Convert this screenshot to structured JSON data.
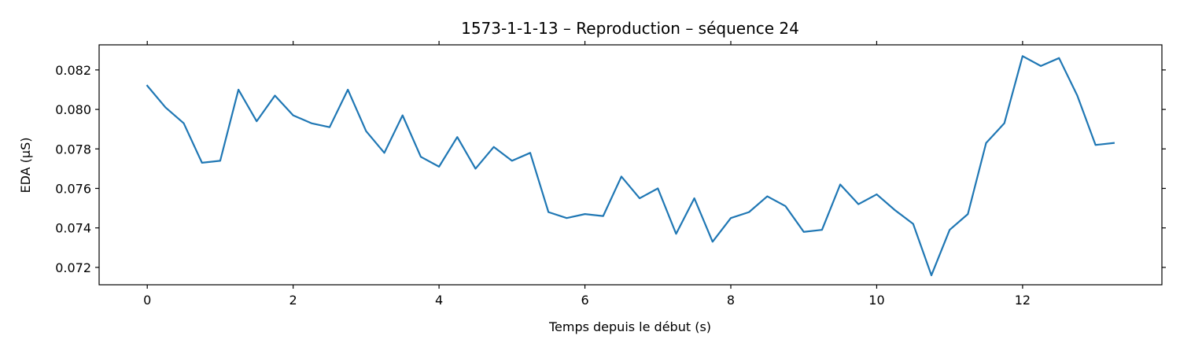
{
  "chart_data": {
    "type": "line",
    "title": "1573-1-1-13 – Reproduction – séquence 24",
    "xlabel": "Temps depuis le début (s)",
    "ylabel": "EDA (µS)",
    "xlim": [
      -0.66,
      13.91
    ],
    "ylim": [
      0.07112,
      0.08327
    ],
    "grid": false,
    "xticks": [
      0,
      2,
      4,
      6,
      8,
      10,
      12
    ],
    "xtick_labels": [
      "0",
      "2",
      "4",
      "6",
      "8",
      "10",
      "12"
    ],
    "yticks": [
      0.072,
      0.074,
      0.076,
      0.078,
      0.08,
      0.082
    ],
    "ytick_labels": [
      "0.072",
      "0.074",
      "0.076",
      "0.078",
      "0.080",
      "0.082"
    ],
    "series": [
      {
        "color": "#1f77b4",
        "x": [
          0,
          0.25,
          0.5,
          0.75,
          1.0,
          1.25,
          1.5,
          1.75,
          2.0,
          2.25,
          2.5,
          2.75,
          3.0,
          3.25,
          3.5,
          3.75,
          4.0,
          4.25,
          4.5,
          4.75,
          5.0,
          5.25,
          5.5,
          5.75,
          6.0,
          6.25,
          6.5,
          6.75,
          7.0,
          7.25,
          7.5,
          7.75,
          8.0,
          8.25,
          8.5,
          8.75,
          9.0,
          9.25,
          9.5,
          9.75,
          10.0,
          10.25,
          10.5,
          10.75,
          11.0,
          11.25,
          11.5,
          11.75,
          12.0,
          12.25,
          12.5,
          12.75,
          13.0,
          13.25
        ],
        "y": [
          0.0812,
          0.0801,
          0.0793,
          0.0773,
          0.0774,
          0.081,
          0.0794,
          0.0807,
          0.0797,
          0.0793,
          0.0791,
          0.081,
          0.0789,
          0.0778,
          0.0797,
          0.0776,
          0.0771,
          0.0786,
          0.077,
          0.0781,
          0.0774,
          0.0778,
          0.0748,
          0.0745,
          0.0747,
          0.0746,
          0.0766,
          0.0755,
          0.076,
          0.0737,
          0.0755,
          0.0733,
          0.0745,
          0.0748,
          0.0756,
          0.0751,
          0.0738,
          0.0739,
          0.0762,
          0.0752,
          0.0757,
          0.0749,
          0.0742,
          0.0716,
          0.0739,
          0.0747,
          0.0783,
          0.0793,
          0.0827,
          0.0822,
          0.0826,
          0.0807,
          0.0782,
          0.0783
        ]
      }
    ]
  }
}
